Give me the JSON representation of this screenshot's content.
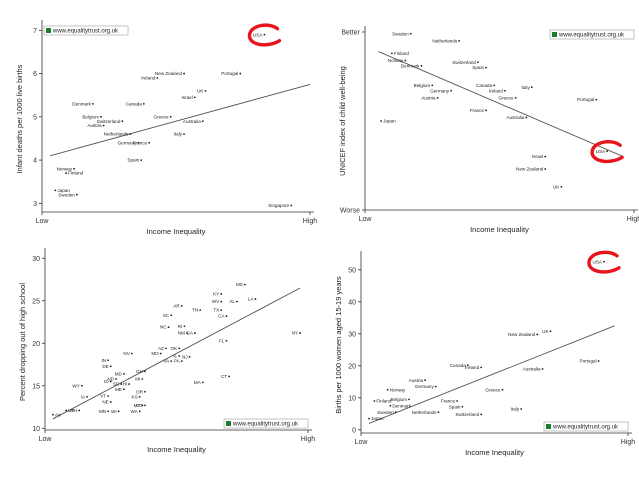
{
  "watermark": "www.equalitytrust.org.uk",
  "colors": {
    "axis": "#333333",
    "trend": "#555555",
    "highlight": "#e8141b",
    "badge_icon": "#1a7d2e"
  },
  "chart_data": [
    {
      "type": "scatter",
      "xlabel": "Income Inequality",
      "ylabel": "Infant deaths per 1000 live births",
      "xlim": [
        0,
        100
      ],
      "ylim": [
        2.8,
        7.1
      ],
      "x_ticks": [
        "Low",
        "High"
      ],
      "y_ticks": [
        "3",
        "4",
        "5",
        "6",
        "7"
      ],
      "legend": "top-left",
      "highlight": "USA",
      "trend": [
        [
          3,
          4.1
        ],
        [
          100,
          5.75
        ]
      ],
      "points": [
        {
          "label": "USA",
          "x": 83,
          "y": 6.9
        },
        {
          "label": "Singapore",
          "x": 93,
          "y": 2.95
        },
        {
          "label": "Portugal",
          "x": 74,
          "y": 6.0
        },
        {
          "label": "New Zealand",
          "x": 53,
          "y": 6.0
        },
        {
          "label": "Ireland",
          "x": 43,
          "y": 5.9
        },
        {
          "label": "UK",
          "x": 61,
          "y": 5.6
        },
        {
          "label": "Israel",
          "x": 57,
          "y": 5.45
        },
        {
          "label": "Denmark",
          "x": 19,
          "y": 5.3
        },
        {
          "label": "Canada",
          "x": 38,
          "y": 5.3
        },
        {
          "label": "Greece",
          "x": 48,
          "y": 5.0
        },
        {
          "label": "Belgium",
          "x": 22,
          "y": 5.0
        },
        {
          "label": "Switzerland",
          "x": 30,
          "y": 4.9
        },
        {
          "label": "Australia",
          "x": 60,
          "y": 4.9
        },
        {
          "label": "Austria",
          "x": 23,
          "y": 4.8
        },
        {
          "label": "Netherlands",
          "x": 33,
          "y": 4.6
        },
        {
          "label": "Italy",
          "x": 53,
          "y": 4.6
        },
        {
          "label": "Germany",
          "x": 36,
          "y": 4.4
        },
        {
          "label": "France",
          "x": 40,
          "y": 4.4
        },
        {
          "label": "Spain",
          "x": 37,
          "y": 4.0
        },
        {
          "label": "Norway",
          "x": 12,
          "y": 3.8
        },
        {
          "label": "Finland",
          "x": 9,
          "y": 3.7
        },
        {
          "label": "Japan",
          "x": 5,
          "y": 3.3
        },
        {
          "label": "Sweden",
          "x": 13,
          "y": 3.2
        }
      ]
    },
    {
      "type": "scatter",
      "xlabel": "Income Inequality",
      "ylabel": "UNICEF index of child well-being",
      "xlim": [
        0,
        100
      ],
      "ylim": [
        0,
        100
      ],
      "x_ticks": [
        "Low",
        "High"
      ],
      "y_ticks": [
        "Better",
        "Worse"
      ],
      "legend": "top-right",
      "highlight": "USA",
      "trend": [
        [
          5,
          89
        ],
        [
          96,
          30
        ]
      ],
      "points": [
        {
          "label": "Sweden",
          "x": 17,
          "y": 99
        },
        {
          "label": "Netherlands",
          "x": 35,
          "y": 95
        },
        {
          "label": "Finland",
          "x": 10,
          "y": 88
        },
        {
          "label": "Norway",
          "x": 15,
          "y": 84
        },
        {
          "label": "Denmark",
          "x": 21,
          "y": 81
        },
        {
          "label": "Switzerland",
          "x": 42,
          "y": 83
        },
        {
          "label": "Spain",
          "x": 45,
          "y": 80
        },
        {
          "label": "Belgium",
          "x": 25,
          "y": 70
        },
        {
          "label": "Germany",
          "x": 32,
          "y": 67
        },
        {
          "label": "Canada",
          "x": 48,
          "y": 70
        },
        {
          "label": "Ireland",
          "x": 52,
          "y": 67
        },
        {
          "label": "Italy",
          "x": 62,
          "y": 69
        },
        {
          "label": "Greece",
          "x": 56,
          "y": 63
        },
        {
          "label": "Austria",
          "x": 27,
          "y": 63
        },
        {
          "label": "Portugal",
          "x": 86,
          "y": 62
        },
        {
          "label": "France",
          "x": 45,
          "y": 56
        },
        {
          "label": "Australia",
          "x": 60,
          "y": 52
        },
        {
          "label": "Japan",
          "x": 6,
          "y": 50
        },
        {
          "label": "USA",
          "x": 90,
          "y": 33
        },
        {
          "label": "Israel",
          "x": 67,
          "y": 30
        },
        {
          "label": "New Zealand",
          "x": 67,
          "y": 23
        },
        {
          "label": "UK",
          "x": 73,
          "y": 13
        }
      ]
    },
    {
      "type": "scatter",
      "xlabel": "Income Inequality",
      "ylabel": "Percent dropping out of high school",
      "xlim": [
        0,
        100
      ],
      "ylim": [
        9.8,
        30.5
      ],
      "x_ticks": [
        "Low",
        "High"
      ],
      "y_ticks": [
        "10",
        "15",
        "20",
        "25",
        "30"
      ],
      "legend": "bottom-right",
      "trend": [
        [
          3,
          11.1
        ],
        [
          97,
          26.5
        ]
      ],
      "points": [
        {
          "label": "MS",
          "x": 76,
          "y": 26.9
        },
        {
          "label": "KY",
          "x": 67,
          "y": 25.8
        },
        {
          "label": "LA",
          "x": 80,
          "y": 25.2
        },
        {
          "label": "WV",
          "x": 67,
          "y": 24.9
        },
        {
          "label": "AL",
          "x": 73,
          "y": 24.9
        },
        {
          "label": "AR",
          "x": 52,
          "y": 24.4
        },
        {
          "label": "TN",
          "x": 59,
          "y": 23.9
        },
        {
          "label": "TX",
          "x": 67,
          "y": 23.9
        },
        {
          "label": "SC",
          "x": 48,
          "y": 23.3
        },
        {
          "label": "CA",
          "x": 69,
          "y": 23.2
        },
        {
          "label": "NC",
          "x": 47,
          "y": 21.9
        },
        {
          "label": "RI",
          "x": 53,
          "y": 22.0
        },
        {
          "label": "NM",
          "x": 54,
          "y": 21.2
        },
        {
          "label": "GA",
          "x": 57,
          "y": 21.2
        },
        {
          "label": "NY",
          "x": 97,
          "y": 21.2
        },
        {
          "label": "FL",
          "x": 69,
          "y": 20.3
        },
        {
          "label": "AZ",
          "x": 46,
          "y": 19.4
        },
        {
          "label": "OK",
          "x": 51,
          "y": 19.4
        },
        {
          "label": "NV",
          "x": 33,
          "y": 18.8
        },
        {
          "label": "MO",
          "x": 44,
          "y": 18.8
        },
        {
          "label": "IL",
          "x": 51,
          "y": 18.5
        },
        {
          "label": "NJ",
          "x": 55,
          "y": 18.4
        },
        {
          "label": "VA",
          "x": 48,
          "y": 17.9
        },
        {
          "label": "PA",
          "x": 52,
          "y": 17.9
        },
        {
          "label": "IN",
          "x": 24,
          "y": 18.0
        },
        {
          "label": "DE",
          "x": 25,
          "y": 17.3
        },
        {
          "label": "OH",
          "x": 38,
          "y": 16.7
        },
        {
          "label": "MD",
          "x": 30,
          "y": 16.4
        },
        {
          "label": "ND",
          "x": 27,
          "y": 15.8
        },
        {
          "label": "MI",
          "x": 37,
          "y": 15.8
        },
        {
          "label": "ID",
          "x": 25,
          "y": 15.5
        },
        {
          "label": "SD",
          "x": 29,
          "y": 15.2
        },
        {
          "label": "HI",
          "x": 32,
          "y": 15.2
        },
        {
          "label": "MT",
          "x": 37,
          "y": 12.7
        },
        {
          "label": "CT",
          "x": 70,
          "y": 16.1
        },
        {
          "label": "MA",
          "x": 60,
          "y": 15.4
        },
        {
          "label": "WY",
          "x": 14,
          "y": 15.0
        },
        {
          "label": "ME",
          "x": 30,
          "y": 14.6
        },
        {
          "label": "OR",
          "x": 38,
          "y": 14.3
        },
        {
          "label": "KS",
          "x": 36,
          "y": 13.7
        },
        {
          "label": "IA",
          "x": 16,
          "y": 13.7
        },
        {
          "label": "VT",
          "x": 24,
          "y": 13.8
        },
        {
          "label": "NE",
          "x": 25,
          "y": 13.1
        },
        {
          "label": "CO",
          "x": 38,
          "y": 12.7
        },
        {
          "label": "UT",
          "x": 8,
          "y": 12.1
        },
        {
          "label": "NH",
          "x": 13,
          "y": 12.1
        },
        {
          "label": "MN",
          "x": 24,
          "y": 12.0
        },
        {
          "label": "WI",
          "x": 28,
          "y": 12.0
        },
        {
          "label": "WA",
          "x": 36,
          "y": 12.0
        },
        {
          "label": "AK",
          "x": 3,
          "y": 11.6
        }
      ]
    },
    {
      "type": "scatter",
      "xlabel": "Income Inequality",
      "ylabel": "Births per 1000 women aged 15-19 years",
      "xlim": [
        0,
        100
      ],
      "ylim": [
        -1,
        54
      ],
      "x_ticks": [
        "Low",
        "High"
      ],
      "y_ticks": [
        "0",
        "10",
        "20",
        "30",
        "40",
        "50"
      ],
      "legend": "bottom-right",
      "highlight": "USA",
      "trend": [
        [
          3,
          2
        ],
        [
          95,
          32.5
        ]
      ],
      "points": [
        {
          "label": "USA",
          "x": 91,
          "y": 52.5
        },
        {
          "label": "UK",
          "x": 71,
          "y": 30.8
        },
        {
          "label": "New Zealand",
          "x": 66,
          "y": 29.8
        },
        {
          "label": "Portugal",
          "x": 89,
          "y": 21.5
        },
        {
          "label": "Canada",
          "x": 40,
          "y": 20.2
        },
        {
          "label": "Ireland",
          "x": 45,
          "y": 19.5
        },
        {
          "label": "Australia",
          "x": 68,
          "y": 19.0
        },
        {
          "label": "Austria",
          "x": 24,
          "y": 15.5
        },
        {
          "label": "Germany",
          "x": 28,
          "y": 13.5
        },
        {
          "label": "Greece",
          "x": 53,
          "y": 12.5
        },
        {
          "label": "Norway",
          "x": 10,
          "y": 12.5
        },
        {
          "label": "Belgium",
          "x": 18,
          "y": 9.5
        },
        {
          "label": "France",
          "x": 36,
          "y": 9.0
        },
        {
          "label": "Finland",
          "x": 5,
          "y": 9.0
        },
        {
          "label": "Denmark",
          "x": 11,
          "y": 7.5
        },
        {
          "label": "Spain",
          "x": 38,
          "y": 7.2
        },
        {
          "label": "Italy",
          "x": 60,
          "y": 6.5
        },
        {
          "label": "Sweden",
          "x": 13,
          "y": 5.5
        },
        {
          "label": "Netherlands",
          "x": 29,
          "y": 5.5
        },
        {
          "label": "Switzerland",
          "x": 45,
          "y": 4.8
        },
        {
          "label": "Japan",
          "x": 3,
          "y": 3.5
        }
      ]
    }
  ]
}
